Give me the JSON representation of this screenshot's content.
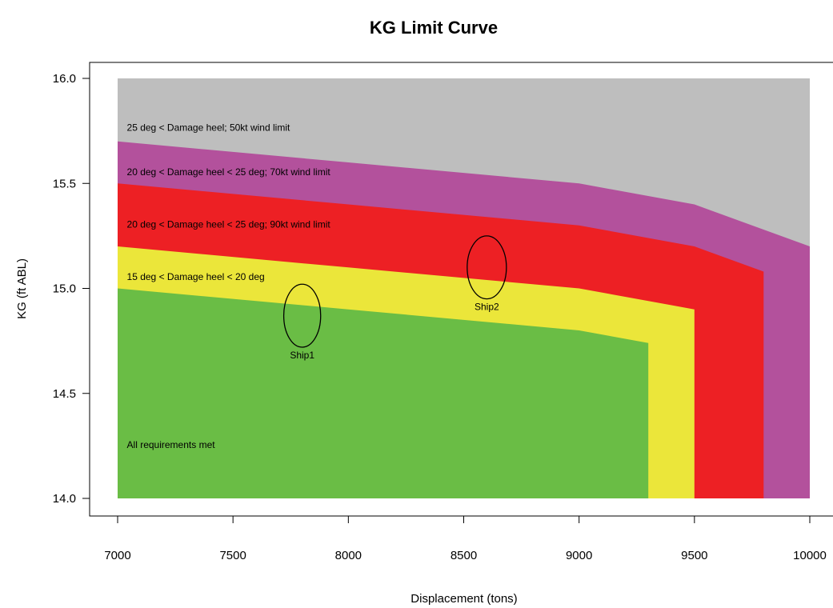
{
  "chart_data": {
    "type": "area",
    "title": "KG Limit Curve",
    "xlabel": "Displacement (tons)",
    "ylabel": "KG (ft ABL)",
    "xlim": [
      7000,
      10000
    ],
    "ylim": [
      14.0,
      16.0
    ],
    "x_ticks": [
      7000,
      7500,
      8000,
      8500,
      9000,
      9500,
      10000
    ],
    "y_ticks": [
      "14.0",
      "14.5",
      "15.0",
      "15.5",
      "16.0"
    ],
    "y_tick_values": [
      14.0,
      14.5,
      15.0,
      15.5,
      16.0
    ],
    "grid": false,
    "legend": "none",
    "series": [
      {
        "name": "25 deg < Damage heel; 50kt wind limit",
        "color": "#bebebe",
        "x": [
          7000,
          10000
        ],
        "y": [
          16.0,
          16.0
        ]
      },
      {
        "name": "20 deg < Damage heel < 25 deg; 70kt wind limit",
        "color": "#b3519c",
        "x": [
          7000,
          8000,
          9000,
          9500,
          10000
        ],
        "y": [
          15.7,
          15.6,
          15.5,
          15.4,
          15.2
        ]
      },
      {
        "name": "20 deg < Damage heel < 25 deg; 90kt wind limit",
        "color": "#ed2024",
        "x": [
          7000,
          8000,
          9000,
          9500,
          9800
        ],
        "y": [
          15.5,
          15.4,
          15.3,
          15.2,
          15.08
        ]
      },
      {
        "name": "15 deg < Damage heel < 20 deg",
        "color": "#ebe63a",
        "x": [
          7000,
          8000,
          9000,
          9500
        ],
        "y": [
          15.2,
          15.1,
          15.0,
          14.9
        ]
      },
      {
        "name": "All requirements met",
        "color": "#6abd45",
        "x": [
          7000,
          8000,
          9000,
          9300
        ],
        "y": [
          15.0,
          14.9,
          14.8,
          14.74
        ]
      }
    ],
    "annotations": [
      {
        "label": "25 deg < Damage heel; 50kt wind limit",
        "x": 7040,
        "y": 15.75
      },
      {
        "label": "20 deg < Damage heel < 25 deg; 70kt wind limit",
        "x": 7040,
        "y": 15.54
      },
      {
        "label": "20 deg < Damage heel < 25 deg; 90kt wind limit",
        "x": 7040,
        "y": 15.29
      },
      {
        "label": "15 deg < Damage heel < 20 deg",
        "x": 7040,
        "y": 15.04
      },
      {
        "label": "All requirements met",
        "x": 7040,
        "y": 14.24
      }
    ],
    "ships": [
      {
        "name": "Ship1",
        "x": 7800,
        "y": 14.87,
        "rx": 80,
        "ry": 0.15
      },
      {
        "name": "Ship2",
        "x": 8600,
        "y": 15.1,
        "rx": 85,
        "ry": 0.15
      }
    ]
  }
}
